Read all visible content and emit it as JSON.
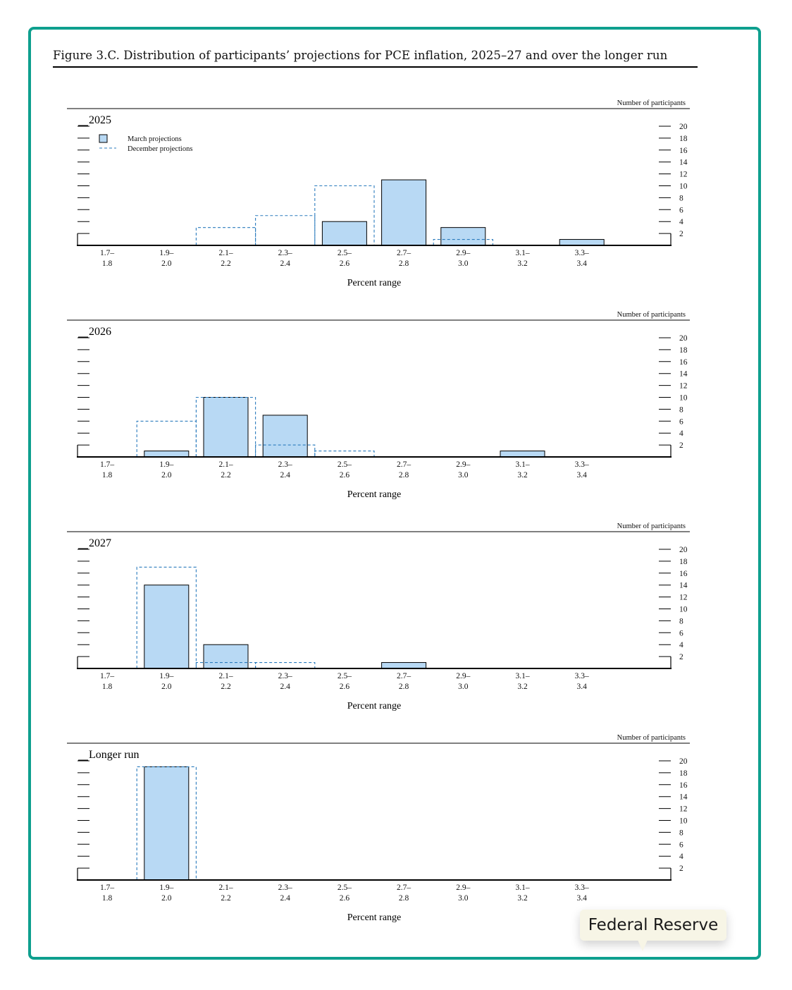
{
  "figure_title": "Figure 3.C. Distribution of participants’ projections for PCE inflation, 2025–27 and over the longer run",
  "tooltip": {
    "label": "Federal Reserve"
  },
  "colors": {
    "frame": "#0e9f8e",
    "march_fill": "#b8d9f4",
    "december_line": "#2a7bbd"
  },
  "chart_data": [
    {
      "type": "bar",
      "panel_label": "2025",
      "y_unit_label": "Number of participants",
      "xlabel": "Percent range",
      "legend": {
        "march": "March projections",
        "december": "December projections"
      },
      "categories": [
        [
          "1.7–",
          "1.8"
        ],
        [
          "1.9–",
          "2.0"
        ],
        [
          "2.1–",
          "2.2"
        ],
        [
          "2.3–",
          "2.4"
        ],
        [
          "2.5–",
          "2.6"
        ],
        [
          "2.7–",
          "2.8"
        ],
        [
          "2.9–",
          "3.0"
        ],
        [
          "3.1–",
          "3.2"
        ],
        [
          "3.3–",
          "3.4"
        ]
      ],
      "yticks": [
        "2",
        "4",
        "6",
        "8",
        "10",
        "12",
        "14",
        "16",
        "18",
        "20"
      ],
      "ylim": [
        0,
        20
      ],
      "series": [
        {
          "name": "March projections",
          "values": [
            0,
            0,
            0,
            0,
            4,
            11,
            3,
            0,
            1
          ]
        },
        {
          "name": "December projections",
          "values": [
            0,
            0,
            3,
            5,
            10,
            0,
            1,
            0,
            0
          ]
        }
      ]
    },
    {
      "type": "bar",
      "panel_label": "2026",
      "y_unit_label": "Number of participants",
      "xlabel": "Percent range",
      "categories": [
        [
          "1.7–",
          "1.8"
        ],
        [
          "1.9–",
          "2.0"
        ],
        [
          "2.1–",
          "2.2"
        ],
        [
          "2.3–",
          "2.4"
        ],
        [
          "2.5–",
          "2.6"
        ],
        [
          "2.7–",
          "2.8"
        ],
        [
          "2.9–",
          "3.0"
        ],
        [
          "3.1–",
          "3.2"
        ],
        [
          "3.3–",
          "3.4"
        ]
      ],
      "yticks": [
        "2",
        "4",
        "6",
        "8",
        "10",
        "12",
        "14",
        "16",
        "18",
        "20"
      ],
      "ylim": [
        0,
        20
      ],
      "series": [
        {
          "name": "March projections",
          "values": [
            0,
            1,
            10,
            7,
            0,
            0,
            0,
            1,
            0
          ]
        },
        {
          "name": "December projections",
          "values": [
            0,
            6,
            10,
            2,
            1,
            0,
            0,
            0,
            0
          ]
        }
      ]
    },
    {
      "type": "bar",
      "panel_label": "2027",
      "y_unit_label": "Number of participants",
      "xlabel": "Percent range",
      "categories": [
        [
          "1.7–",
          "1.8"
        ],
        [
          "1.9–",
          "2.0"
        ],
        [
          "2.1–",
          "2.2"
        ],
        [
          "2.3–",
          "2.4"
        ],
        [
          "2.5–",
          "2.6"
        ],
        [
          "2.7–",
          "2.8"
        ],
        [
          "2.9–",
          "3.0"
        ],
        [
          "3.1–",
          "3.2"
        ],
        [
          "3.3–",
          "3.4"
        ]
      ],
      "yticks": [
        "2",
        "4",
        "6",
        "8",
        "10",
        "12",
        "14",
        "16",
        "18",
        "20"
      ],
      "ylim": [
        0,
        20
      ],
      "series": [
        {
          "name": "March projections",
          "values": [
            0,
            14,
            4,
            0,
            0,
            1,
            0,
            0,
            0
          ]
        },
        {
          "name": "December projections",
          "values": [
            0,
            17,
            1,
            1,
            0,
            0,
            0,
            0,
            0
          ]
        }
      ]
    },
    {
      "type": "bar",
      "panel_label": "Longer run",
      "y_unit_label": "Number of participants",
      "xlabel": "Percent range",
      "categories": [
        [
          "1.7–",
          "1.8"
        ],
        [
          "1.9–",
          "2.0"
        ],
        [
          "2.1–",
          "2.2"
        ],
        [
          "2.3–",
          "2.4"
        ],
        [
          "2.5–",
          "2.6"
        ],
        [
          "2.7–",
          "2.8"
        ],
        [
          "2.9–",
          "3.0"
        ],
        [
          "3.1–",
          "3.2"
        ],
        [
          "3.3–",
          "3.4"
        ]
      ],
      "yticks": [
        "2",
        "4",
        "6",
        "8",
        "10",
        "12",
        "14",
        "16",
        "18",
        "20"
      ],
      "ylim": [
        0,
        20
      ],
      "series": [
        {
          "name": "March projections",
          "values": [
            0,
            19,
            0,
            0,
            0,
            0,
            0,
            0,
            0
          ]
        },
        {
          "name": "December projections",
          "values": [
            0,
            19,
            0,
            0,
            0,
            0,
            0,
            0,
            0
          ]
        }
      ]
    }
  ]
}
